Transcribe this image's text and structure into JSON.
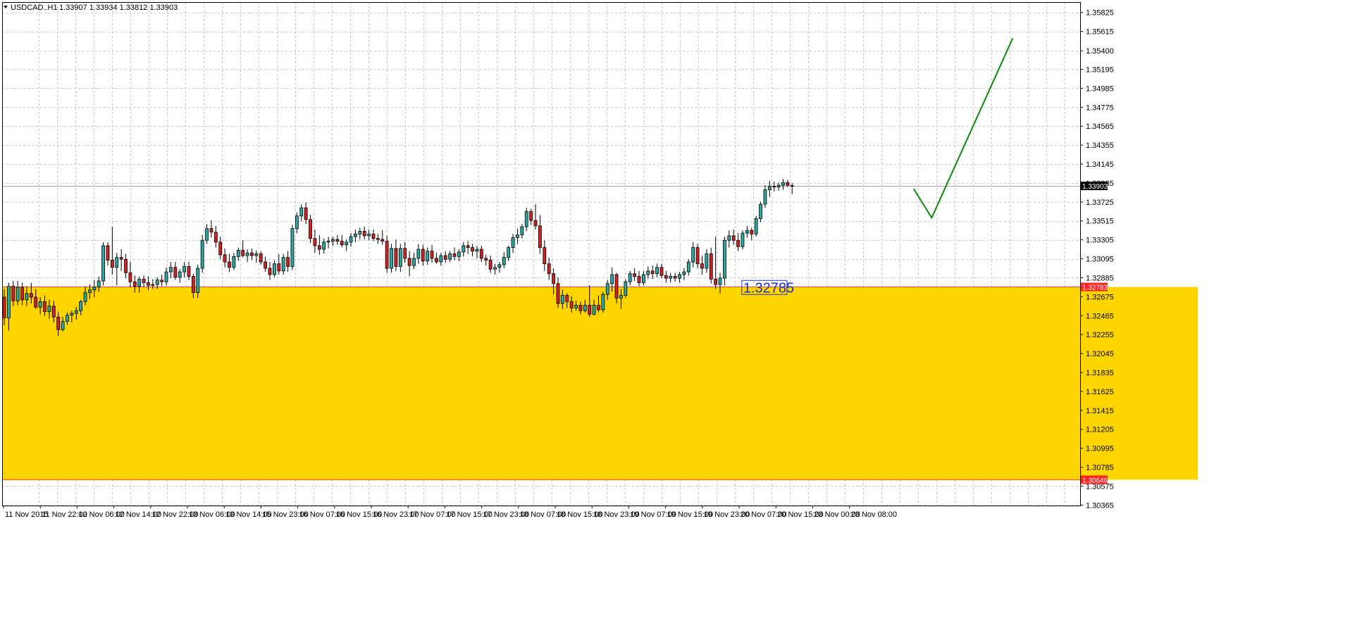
{
  "header": {
    "symbol": "USDCAD..H1",
    "ohlc": "1.33907 1.33934 1.33812 1.33903",
    "menu_icon": "triangle-down-icon"
  },
  "colors": {
    "background": "#ffffff",
    "grid": "#c8c8c8",
    "bull_candle": "#2ca7a4",
    "bear_candle": "#d42222",
    "wick": "#000000",
    "zone_fill": "#ffd500",
    "level_line": "#ff3b3b",
    "level_tag": "#ff2020",
    "current_price_line": "#a8a8a8",
    "current_price_tag": "#000000",
    "projection_line": "#0a8a0a",
    "annotation_text": "#1f2fd0"
  },
  "chart_data": {
    "type": "candlestick",
    "symbol": "USDCAD",
    "timeframe": "H1",
    "ylim": [
      1.3036,
      1.3594
    ],
    "y_ticks": [
      "1.35825",
      "1.35615",
      "1.35400",
      "1.35195",
      "1.34985",
      "1.34775",
      "1.34565",
      "1.34355",
      "1.34145",
      "1.33935",
      "1.33725",
      "1.33515",
      "1.33305",
      "1.33095",
      "1.32885",
      "1.32675",
      "1.32465",
      "1.32255",
      "1.32045",
      "1.31835",
      "1.31625",
      "1.31415",
      "1.31205",
      "1.30995",
      "1.30785",
      "1.30575",
      "1.30365"
    ],
    "x_labels": [
      "11 Nov 2015",
      "11 Nov 22:00",
      "12 Nov 06:00",
      "12 Nov 14:00",
      "12 Nov 22:00",
      "13 Nov 06:00",
      "13 Nov 14:00",
      "15 Nov 23:00",
      "16 Nov 07:00",
      "16 Nov 15:00",
      "16 Nov 23:00",
      "17 Nov 07:00",
      "17 Nov 15:00",
      "17 Nov 23:00",
      "18 Nov 07:00",
      "18 Nov 15:00",
      "18 Nov 23:00",
      "19 Nov 07:00",
      "19 Nov 15:00",
      "19 Nov 23:00",
      "20 Nov 07:00",
      "20 Nov 15:00",
      "23 Nov 00:00",
      "23 Nov 08:00"
    ],
    "current_price": 1.33903,
    "current_price_label": "1.33903",
    "zone": {
      "top": 1.32783,
      "bottom": 1.30646,
      "top_label": "1.32783",
      "bottom_label": "1.30646"
    },
    "annotation": {
      "text": "1.32785",
      "price": 1.32785,
      "index": 174
    },
    "projection": [
      {
        "index": 202,
        "price": 1.3387
      },
      {
        "index": 206,
        "price": 1.3355
      },
      {
        "index": 224,
        "price": 1.3554
      }
    ],
    "candles": [
      [
        1.3267,
        1.3276,
        1.3236,
        1.3244
      ],
      [
        1.3244,
        1.3283,
        1.323,
        1.3279
      ],
      [
        1.3279,
        1.3285,
        1.3257,
        1.3263
      ],
      [
        1.3263,
        1.3285,
        1.3258,
        1.3278
      ],
      [
        1.3278,
        1.3283,
        1.3258,
        1.3264
      ],
      [
        1.3264,
        1.3279,
        1.3257,
        1.3271
      ],
      [
        1.3271,
        1.3283,
        1.326,
        1.3267
      ],
      [
        1.3267,
        1.3276,
        1.3254,
        1.3256
      ],
      [
        1.3256,
        1.3267,
        1.3248,
        1.3262
      ],
      [
        1.3262,
        1.3269,
        1.3246,
        1.3251
      ],
      [
        1.3251,
        1.3264,
        1.3243,
        1.3257
      ],
      [
        1.3257,
        1.3263,
        1.3239,
        1.3245
      ],
      [
        1.3245,
        1.3251,
        1.3224,
        1.3231
      ],
      [
        1.3231,
        1.3245,
        1.3229,
        1.324
      ],
      [
        1.324,
        1.325,
        1.3236,
        1.3247
      ],
      [
        1.3247,
        1.3252,
        1.3239,
        1.3249
      ],
      [
        1.3249,
        1.3256,
        1.3242,
        1.3252
      ],
      [
        1.3252,
        1.3264,
        1.3247,
        1.3262
      ],
      [
        1.3262,
        1.3279,
        1.3258,
        1.3272
      ],
      [
        1.3272,
        1.3281,
        1.3265,
        1.3275
      ],
      [
        1.3275,
        1.3286,
        1.3267,
        1.3278
      ],
      [
        1.3278,
        1.329,
        1.3273,
        1.3285
      ],
      [
        1.3285,
        1.3328,
        1.328,
        1.3324
      ],
      [
        1.3324,
        1.3328,
        1.3302,
        1.3308
      ],
      [
        1.3308,
        1.3345,
        1.3292,
        1.33
      ],
      [
        1.33,
        1.3316,
        1.328,
        1.3311
      ],
      [
        1.3311,
        1.332,
        1.3296,
        1.3309
      ],
      [
        1.3309,
        1.3315,
        1.3288,
        1.3294
      ],
      [
        1.3294,
        1.3306,
        1.3278,
        1.3284
      ],
      [
        1.3284,
        1.3291,
        1.3272,
        1.3279
      ],
      [
        1.3279,
        1.329,
        1.3272,
        1.3287
      ],
      [
        1.3287,
        1.3291,
        1.3278,
        1.3283
      ],
      [
        1.3283,
        1.329,
        1.3275,
        1.328
      ],
      [
        1.328,
        1.3287,
        1.3276,
        1.3281
      ],
      [
        1.3281,
        1.3289,
        1.3276,
        1.3286
      ],
      [
        1.3286,
        1.3292,
        1.3279,
        1.3284
      ],
      [
        1.3284,
        1.33,
        1.328,
        1.3295
      ],
      [
        1.3295,
        1.3306,
        1.3288,
        1.33
      ],
      [
        1.33,
        1.3306,
        1.3286,
        1.3289
      ],
      [
        1.3289,
        1.3298,
        1.3283,
        1.3295
      ],
      [
        1.3295,
        1.3306,
        1.3289,
        1.3301
      ],
      [
        1.3301,
        1.3306,
        1.3286,
        1.329
      ],
      [
        1.329,
        1.3293,
        1.3266,
        1.3272
      ],
      [
        1.3272,
        1.3303,
        1.3266,
        1.3299
      ],
      [
        1.3299,
        1.3336,
        1.3294,
        1.333
      ],
      [
        1.333,
        1.3348,
        1.3326,
        1.3343
      ],
      [
        1.3343,
        1.3352,
        1.3333,
        1.3339
      ],
      [
        1.3339,
        1.3346,
        1.3322,
        1.3328
      ],
      [
        1.3328,
        1.3334,
        1.3309,
        1.3314
      ],
      [
        1.3314,
        1.3321,
        1.33,
        1.3306
      ],
      [
        1.3306,
        1.3315,
        1.3295,
        1.33
      ],
      [
        1.33,
        1.3316,
        1.3297,
        1.3312
      ],
      [
        1.3312,
        1.3322,
        1.3307,
        1.3319
      ],
      [
        1.3319,
        1.333,
        1.3311,
        1.3313
      ],
      [
        1.3313,
        1.332,
        1.3306,
        1.3316
      ],
      [
        1.3316,
        1.3321,
        1.3308,
        1.3313
      ],
      [
        1.3313,
        1.3319,
        1.3305,
        1.3315
      ],
      [
        1.3315,
        1.3318,
        1.3303,
        1.3306
      ],
      [
        1.3306,
        1.3312,
        1.3295,
        1.3299
      ],
      [
        1.3299,
        1.3306,
        1.3286,
        1.3292
      ],
      [
        1.3292,
        1.3308,
        1.3289,
        1.3304
      ],
      [
        1.3304,
        1.3315,
        1.3292,
        1.3296
      ],
      [
        1.3296,
        1.3315,
        1.3292,
        1.3311
      ],
      [
        1.3311,
        1.3318,
        1.3295,
        1.3301
      ],
      [
        1.3301,
        1.3347,
        1.3297,
        1.3343
      ],
      [
        1.3343,
        1.3361,
        1.3338,
        1.3357
      ],
      [
        1.3357,
        1.337,
        1.3351,
        1.3366
      ],
      [
        1.3366,
        1.3372,
        1.3348,
        1.3353
      ],
      [
        1.3353,
        1.3358,
        1.3327,
        1.3332
      ],
      [
        1.3332,
        1.3342,
        1.3316,
        1.3324
      ],
      [
        1.3324,
        1.3336,
        1.3314,
        1.332
      ],
      [
        1.332,
        1.3332,
        1.3315,
        1.3328
      ],
      [
        1.3328,
        1.3334,
        1.3321,
        1.3329
      ],
      [
        1.3329,
        1.3334,
        1.3324,
        1.3331
      ],
      [
        1.3331,
        1.3336,
        1.3325,
        1.3329
      ],
      [
        1.3329,
        1.3336,
        1.3322,
        1.3325
      ],
      [
        1.3325,
        1.3331,
        1.3318,
        1.3328
      ],
      [
        1.3328,
        1.3338,
        1.3323,
        1.3334
      ],
      [
        1.3334,
        1.3342,
        1.3328,
        1.3337
      ],
      [
        1.3337,
        1.3344,
        1.3331,
        1.334
      ],
      [
        1.334,
        1.3345,
        1.3331,
        1.3335
      ],
      [
        1.3335,
        1.3342,
        1.333,
        1.3337
      ],
      [
        1.3337,
        1.3342,
        1.3329,
        1.3332
      ],
      [
        1.3332,
        1.3337,
        1.3326,
        1.3331
      ],
      [
        1.3331,
        1.3341,
        1.3325,
        1.3329
      ],
      [
        1.3329,
        1.3335,
        1.3294,
        1.3299
      ],
      [
        1.3299,
        1.3326,
        1.3294,
        1.3321
      ],
      [
        1.3321,
        1.3331,
        1.3296,
        1.3301
      ],
      [
        1.3301,
        1.3326,
        1.3295,
        1.3321
      ],
      [
        1.3321,
        1.3328,
        1.3305,
        1.331
      ],
      [
        1.331,
        1.3318,
        1.329,
        1.3302
      ],
      [
        1.3302,
        1.3316,
        1.3298,
        1.331
      ],
      [
        1.331,
        1.3326,
        1.3304,
        1.332
      ],
      [
        1.332,
        1.3325,
        1.3302,
        1.3307
      ],
      [
        1.3307,
        1.3322,
        1.3303,
        1.3318
      ],
      [
        1.3318,
        1.3325,
        1.3305,
        1.331
      ],
      [
        1.331,
        1.3316,
        1.3304,
        1.3306
      ],
      [
        1.3306,
        1.3316,
        1.3302,
        1.3313
      ],
      [
        1.3313,
        1.3318,
        1.3305,
        1.3309
      ],
      [
        1.3309,
        1.3318,
        1.3306,
        1.3315
      ],
      [
        1.3315,
        1.3322,
        1.3308,
        1.3312
      ],
      [
        1.3312,
        1.332,
        1.3307,
        1.3317
      ],
      [
        1.3317,
        1.3328,
        1.3312,
        1.3324
      ],
      [
        1.3324,
        1.3329,
        1.3315,
        1.3322
      ],
      [
        1.3322,
        1.3326,
        1.3312,
        1.3318
      ],
      [
        1.3318,
        1.3324,
        1.331,
        1.332
      ],
      [
        1.332,
        1.3324,
        1.3306,
        1.331
      ],
      [
        1.331,
        1.3314,
        1.3302,
        1.3308
      ],
      [
        1.3308,
        1.3313,
        1.3294,
        1.3298
      ],
      [
        1.3298,
        1.3304,
        1.3292,
        1.33
      ],
      [
        1.33,
        1.3306,
        1.3294,
        1.3303
      ],
      [
        1.3303,
        1.3317,
        1.3299,
        1.3311
      ],
      [
        1.3311,
        1.3324,
        1.3307,
        1.3322
      ],
      [
        1.3322,
        1.3337,
        1.3316,
        1.3333
      ],
      [
        1.3333,
        1.3343,
        1.3326,
        1.3336
      ],
      [
        1.3336,
        1.3348,
        1.3332,
        1.3345
      ],
      [
        1.3345,
        1.3366,
        1.334,
        1.3362
      ],
      [
        1.3362,
        1.3365,
        1.3347,
        1.3352
      ],
      [
        1.3352,
        1.337,
        1.3342,
        1.3346
      ],
      [
        1.3346,
        1.3358,
        1.3315,
        1.3322
      ],
      [
        1.3322,
        1.333,
        1.3296,
        1.3304
      ],
      [
        1.3304,
        1.3311,
        1.3286,
        1.3293
      ],
      [
        1.3293,
        1.3299,
        1.327,
        1.3282
      ],
      [
        1.3282,
        1.3289,
        1.3255,
        1.326
      ],
      [
        1.326,
        1.3275,
        1.3254,
        1.3269
      ],
      [
        1.3269,
        1.3271,
        1.3255,
        1.3262
      ],
      [
        1.3262,
        1.3268,
        1.325,
        1.3255
      ],
      [
        1.3255,
        1.3263,
        1.3252,
        1.3258
      ],
      [
        1.3258,
        1.3262,
        1.3248,
        1.3252
      ],
      [
        1.3252,
        1.3264,
        1.325,
        1.3258
      ],
      [
        1.3258,
        1.328,
        1.3245,
        1.3248
      ],
      [
        1.3248,
        1.3264,
        1.3247,
        1.3258
      ],
      [
        1.3258,
        1.3269,
        1.325,
        1.3253
      ],
      [
        1.3253,
        1.3273,
        1.325,
        1.327
      ],
      [
        1.327,
        1.3286,
        1.3264,
        1.3282
      ],
      [
        1.3282,
        1.33,
        1.3273,
        1.3292
      ],
      [
        1.3292,
        1.3294,
        1.326,
        1.3266
      ],
      [
        1.3266,
        1.3276,
        1.3254,
        1.3269
      ],
      [
        1.3269,
        1.3287,
        1.3266,
        1.3284
      ],
      [
        1.3284,
        1.3296,
        1.328,
        1.3293
      ],
      [
        1.3293,
        1.3299,
        1.3285,
        1.329
      ],
      [
        1.329,
        1.3296,
        1.3279,
        1.3283
      ],
      [
        1.3283,
        1.3296,
        1.328,
        1.3292
      ],
      [
        1.3292,
        1.3301,
        1.3287,
        1.3296
      ],
      [
        1.3296,
        1.3302,
        1.3287,
        1.3293
      ],
      [
        1.3293,
        1.3304,
        1.3289,
        1.33
      ],
      [
        1.33,
        1.3304,
        1.3288,
        1.3291
      ],
      [
        1.3291,
        1.3296,
        1.3283,
        1.3288
      ],
      [
        1.3288,
        1.3294,
        1.3283,
        1.329
      ],
      [
        1.329,
        1.3294,
        1.3284,
        1.3288
      ],
      [
        1.3288,
        1.3295,
        1.3283,
        1.3292
      ],
      [
        1.3292,
        1.3299,
        1.3286,
        1.3295
      ],
      [
        1.3295,
        1.3309,
        1.3291,
        1.3306
      ],
      [
        1.3306,
        1.3328,
        1.33,
        1.3322
      ],
      [
        1.3322,
        1.3326,
        1.3299,
        1.3304
      ],
      [
        1.3304,
        1.3313,
        1.3292,
        1.3299
      ],
      [
        1.3299,
        1.332,
        1.3294,
        1.3315
      ],
      [
        1.3315,
        1.3322,
        1.3282,
        1.3287
      ],
      [
        1.3287,
        1.3334,
        1.3276,
        1.3281
      ],
      [
        1.3281,
        1.3294,
        1.3271,
        1.3288
      ],
      [
        1.3288,
        1.3334,
        1.328,
        1.333
      ],
      [
        1.333,
        1.3341,
        1.3322,
        1.3335
      ],
      [
        1.3335,
        1.3342,
        1.3325,
        1.333
      ],
      [
        1.333,
        1.3338,
        1.3318,
        1.3323
      ],
      [
        1.3323,
        1.3341,
        1.332,
        1.3338
      ],
      [
        1.3338,
        1.3346,
        1.3333,
        1.3341
      ],
      [
        1.3341,
        1.3344,
        1.333,
        1.3337
      ],
      [
        1.3337,
        1.3357,
        1.3334,
        1.3354
      ],
      [
        1.3354,
        1.3373,
        1.335,
        1.337
      ],
      [
        1.337,
        1.3391,
        1.3366,
        1.3386
      ],
      [
        1.3386,
        1.3396,
        1.3378,
        1.339
      ],
      [
        1.339,
        1.3395,
        1.3384,
        1.3389
      ],
      [
        1.3389,
        1.3394,
        1.3385,
        1.3391
      ],
      [
        1.3391,
        1.3398,
        1.3386,
        1.3394
      ],
      [
        1.3394,
        1.3397,
        1.3389,
        1.3391
      ],
      [
        1.33907,
        1.33934,
        1.33812,
        1.33903
      ]
    ]
  }
}
